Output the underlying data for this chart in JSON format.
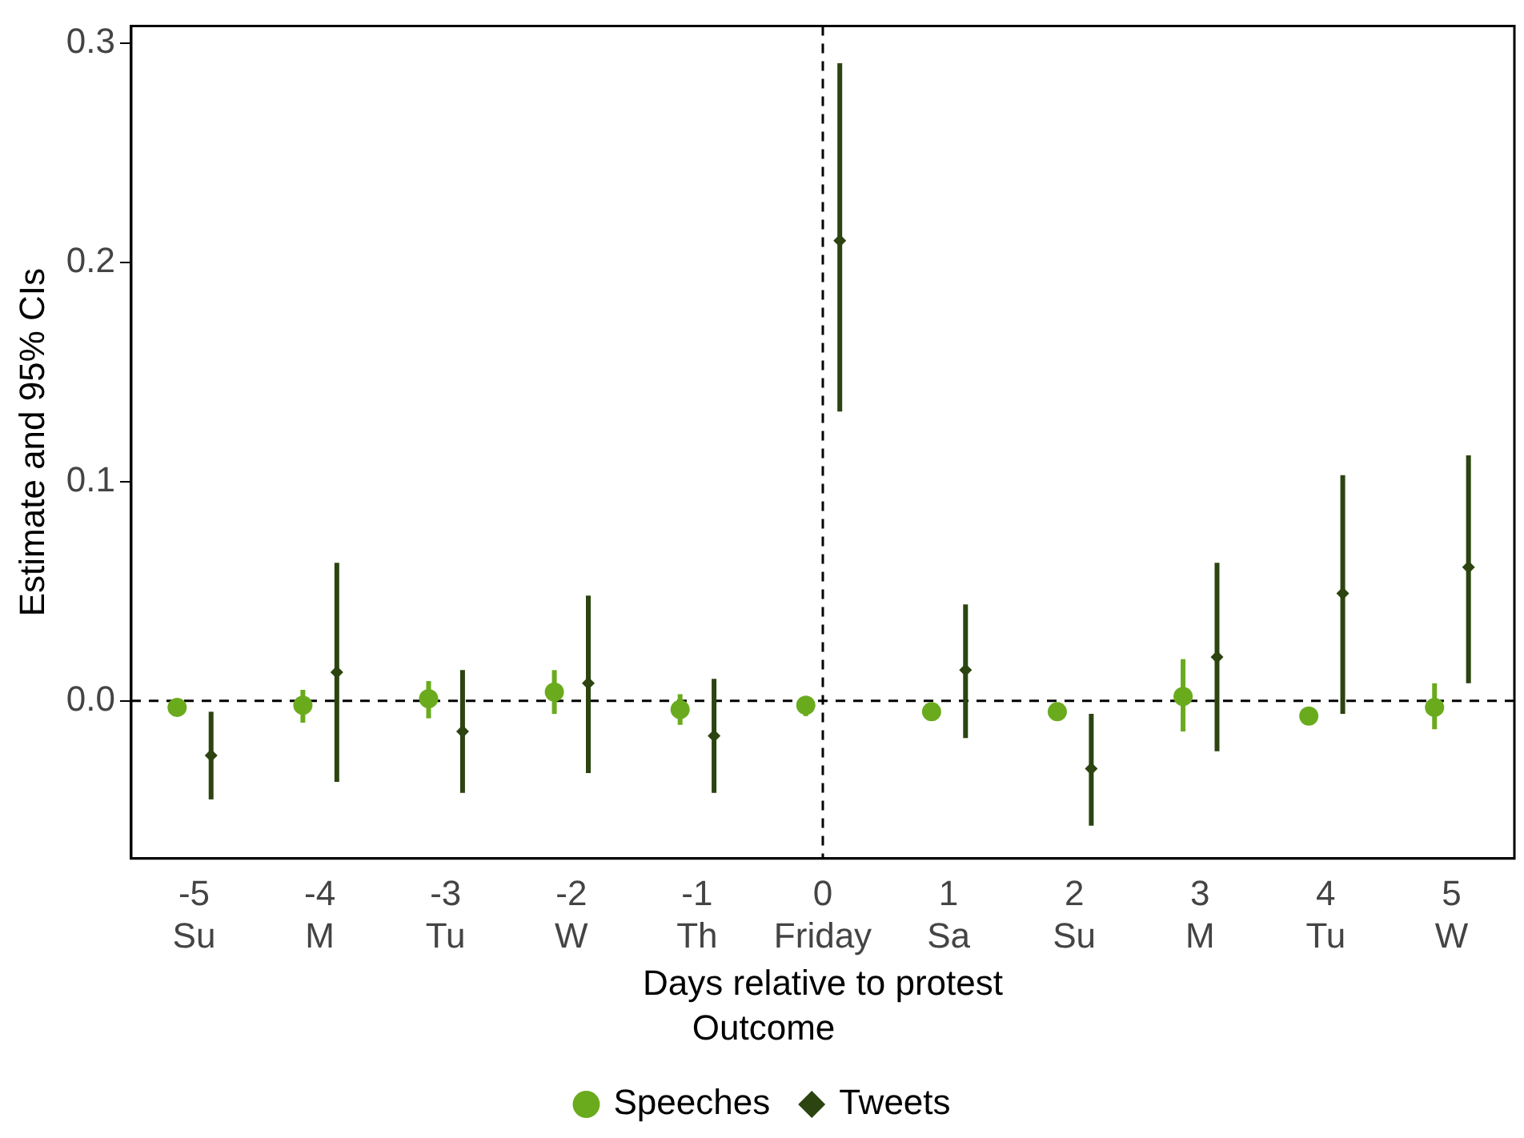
{
  "chart_data": {
    "type": "scatter",
    "xlabel": "Days relative to protest",
    "ylabel": "Estimate and 95% CIs",
    "legend_title": "Outcome",
    "categories": [
      "-5\nSu",
      "-4\nM",
      "-3\nTu",
      "-2\nW",
      "-1\nTh",
      "0\nFriday",
      "1\nSa",
      "2\nSu",
      "3\nM",
      "4\nTu",
      "5\nW"
    ],
    "series": [
      {
        "name": "Speeches",
        "color": "#6aab1e",
        "marker": "circle",
        "values": [
          -0.003,
          -0.002,
          0.001,
          0.004,
          -0.004,
          -0.002,
          -0.005,
          -0.005,
          0.002,
          -0.007,
          -0.003
        ],
        "errors": [
          null,
          [
            -0.01,
            0.005
          ],
          [
            -0.008,
            0.009
          ],
          [
            -0.006,
            0.014
          ],
          [
            -0.011,
            0.003
          ],
          [
            -0.007,
            0.002
          ],
          null,
          null,
          [
            -0.014,
            0.019
          ],
          [
            -0.011,
            -0.003
          ],
          [
            -0.013,
            0.008
          ]
        ]
      },
      {
        "name": "Tweets",
        "color": "#2b4410",
        "marker": "diamond",
        "values": [
          -0.025,
          0.013,
          -0.014,
          0.008,
          -0.016,
          0.21,
          0.014,
          -0.031,
          0.02,
          0.049,
          0.061
        ],
        "errors": [
          [
            -0.045,
            -0.005
          ],
          [
            -0.037,
            0.063
          ],
          [
            -0.042,
            0.014
          ],
          [
            -0.033,
            0.048
          ],
          [
            -0.042,
            0.01
          ],
          [
            0.132,
            0.291
          ],
          [
            -0.017,
            0.044
          ],
          [
            -0.057,
            -0.006
          ],
          [
            -0.023,
            0.063
          ],
          [
            -0.006,
            0.103
          ],
          [
            0.008,
            0.112
          ]
        ]
      }
    ],
    "ylim": [
      -0.072,
      0.308
    ],
    "yticks": [
      {
        "value": 0,
        "label": "0.0"
      },
      0.1,
      0.2,
      0.3
    ],
    "ref_lines": [
      {
        "axis": "y",
        "value": 0,
        "line_style": "dashed",
        "color": "#000000"
      },
      {
        "axis": "x",
        "value": "0\nFriday",
        "line_style": "dashed",
        "color": "#000000"
      }
    ],
    "grid": false,
    "legend": "bottom"
  }
}
